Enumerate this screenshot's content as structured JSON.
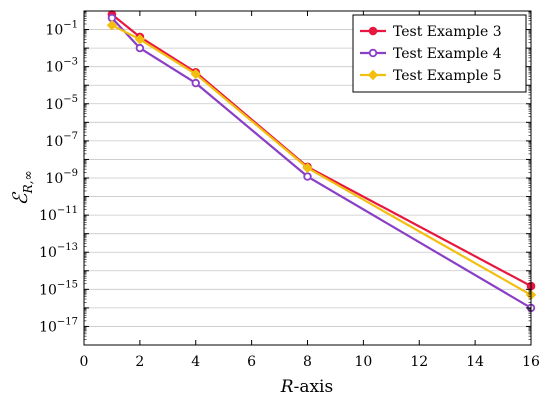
{
  "chart_data": {
    "type": "line",
    "xlabel": "R-axis",
    "ylabel": "ℰR,∞",
    "x_ticks": [
      "0",
      "2",
      "4",
      "6",
      "8",
      "10",
      "12",
      "14",
      "16"
    ],
    "y_ticks": [
      {
        "base": "10",
        "exp": "−1"
      },
      {
        "base": "10",
        "exp": "−3"
      },
      {
        "base": "10",
        "exp": "−5"
      },
      {
        "base": "10",
        "exp": "−7"
      },
      {
        "base": "10",
        "exp": "−9"
      },
      {
        "base": "10",
        "exp": "−11"
      },
      {
        "base": "10",
        "exp": "−13"
      },
      {
        "base": "10",
        "exp": "−15"
      },
      {
        "base": "10",
        "exp": "−17"
      }
    ],
    "xlim": [
      0,
      16
    ],
    "ylim": [
      1e-18,
      1
    ],
    "yscale": "log",
    "grid": "horizontal",
    "legend_position": "top-right",
    "series": [
      {
        "name": "Test Example 3",
        "color": "#e8173f",
        "marker": "filled-circle",
        "x": [
          1,
          2,
          4,
          8,
          16
        ],
        "y": [
          0.65,
          0.04,
          0.0005,
          4e-09,
          1.5e-15
        ]
      },
      {
        "name": "Test Example 4",
        "color": "#8a3fc6",
        "marker": "open-circle",
        "x": [
          1,
          2,
          4,
          8,
          16
        ],
        "y": [
          0.42,
          0.01,
          0.00013,
          1.2e-09,
          1e-16
        ]
      },
      {
        "name": "Test Example 5",
        "color": "#f2bf11",
        "marker": "diamond",
        "x": [
          1,
          2,
          4,
          8,
          16
        ],
        "y": [
          0.17,
          0.03,
          0.0004,
          3.5e-09,
          5e-16
        ]
      }
    ]
  }
}
